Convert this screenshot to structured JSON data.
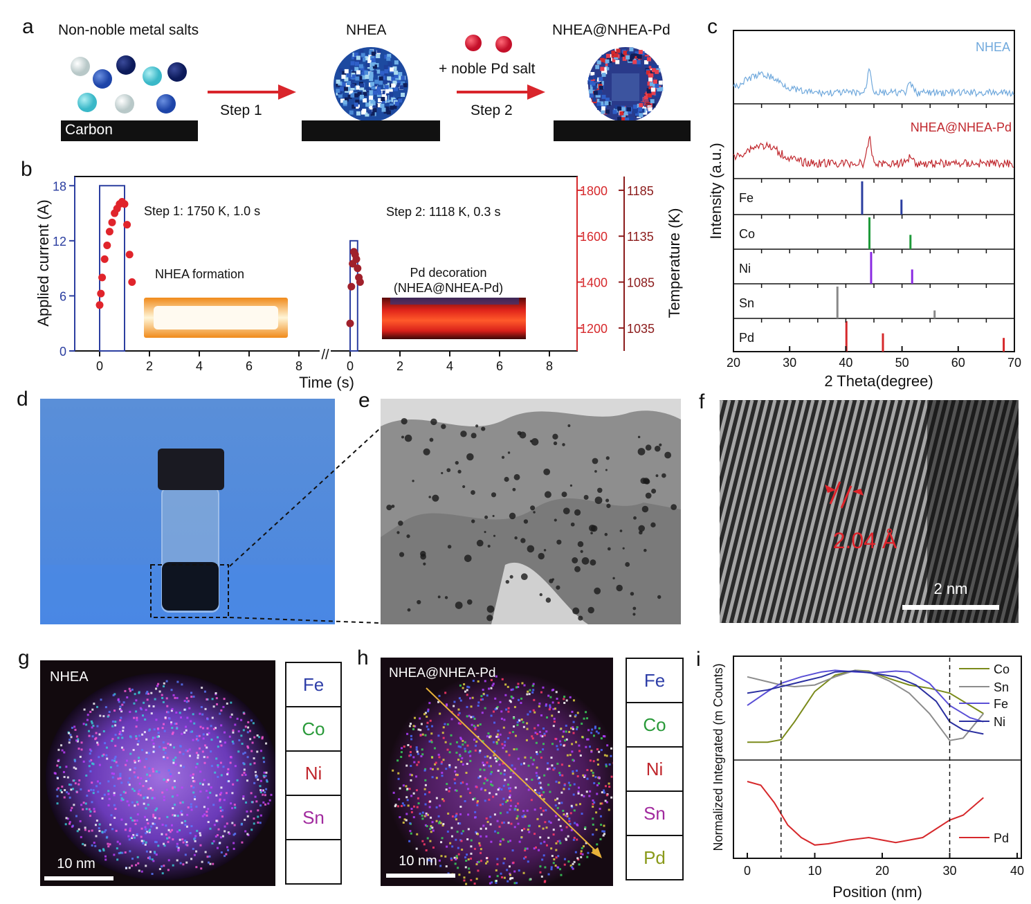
{
  "panels": {
    "a": "a",
    "b": "b",
    "c": "c",
    "d": "d",
    "e": "e",
    "f": "f",
    "g": "g",
    "h": "h",
    "i": "i"
  },
  "a": {
    "salts_label": "Non-noble metal salts",
    "carbon_label": "Carbon",
    "step1_label": "Step 1",
    "nhea_label": "NHEA",
    "pd_salt_label": "+ noble Pd salt",
    "step2_label": "Step 2",
    "product_label": "NHEA@NHEA-Pd"
  },
  "b": {
    "ylabel_left": "Applied current (A)",
    "ylabel_right": "Temperature (K)",
    "xlabel": "Time (s)",
    "left_ticks": [
      "0",
      "6",
      "12",
      "18"
    ],
    "x_ticks": [
      "0",
      "2",
      "4",
      "6",
      "8"
    ],
    "right_ticks_inner": [
      "1200",
      "1400",
      "1600",
      "1800"
    ],
    "right_ticks_outer": [
      "1035",
      "1085",
      "1135",
      "1185"
    ],
    "step1_text": "Step 1: 1750 K, 1.0 s",
    "step2_text": "Step 2: 1118 K, 0.3 s",
    "nhea_formation": "NHEA formation",
    "pd_decoration_1": "Pd decoration",
    "pd_decoration_2": "(NHEA@NHEA-Pd)",
    "break_mark": "//"
  },
  "c": {
    "ylabel": "Intensity (a.u.)",
    "xlabel": "2 Theta(degree)",
    "x_ticks": [
      "20",
      "30",
      "40",
      "50",
      "60",
      "70"
    ],
    "nhea_label": "NHEA",
    "nhea_pd_label": "NHEA@NHEA-Pd",
    "refs": [
      "Fe",
      "Co",
      "Ni",
      "Sn",
      "Pd"
    ],
    "colors": {
      "nhea": "#6fa8dc",
      "nhea_pd": "#c0272d",
      "Fe": "#2b3ea0",
      "Co": "#1f9a3a",
      "Ni": "#8a2be2",
      "Sn": "#888888",
      "Pd": "#d6282b"
    }
  },
  "f": {
    "spacing_label": "2.04 Å",
    "scale": "2 nm"
  },
  "g": {
    "title": "NHEA",
    "scale": "10 nm",
    "elements": [
      "Fe",
      "Co",
      "Ni",
      "Sn",
      ""
    ]
  },
  "h": {
    "title": "NHEA@NHEA-Pd",
    "scale": "10 nm",
    "elements": [
      "Fe",
      "Co",
      "Ni",
      "Sn",
      "Pd"
    ]
  },
  "element_colors": {
    "Fe": "#2f3fa8",
    "Co": "#2a9a3a",
    "Ni": "#c0272d",
    "Sn": "#a12a9e",
    "Pd": "#8a9a1a"
  },
  "i": {
    "ylabel": "Normalized Integrated (m Counts)",
    "xlabel": "Position (nm)",
    "x_ticks": [
      "0",
      "10",
      "20",
      "30",
      "40"
    ],
    "legend": [
      "Co",
      "Sn",
      "Fe",
      "Ni",
      "Pd"
    ],
    "colors": {
      "Co": "#7a8a1a",
      "Sn": "#8c8c8c",
      "Fe": "#5a4fd6",
      "Ni": "#2a2fa0",
      "Pd": "#d6282b"
    }
  },
  "chart_data": [
    {
      "type": "scatter",
      "title": "",
      "xlabel": "Time (s)",
      "ylabel": "Applied current (A)",
      "y2label": "Temperature (K)",
      "ylim": [
        0,
        19
      ],
      "series": [
        {
          "name": "Step 1",
          "x": [
            0,
            0.05,
            0.1,
            0.2,
            0.3,
            0.4,
            0.5,
            0.6,
            0.7,
            0.8,
            0.9,
            1.0,
            1.1,
            1.2,
            1.3
          ],
          "y": [
            1300,
            1350,
            1420,
            1500,
            1560,
            1620,
            1660,
            1700,
            1720,
            1740,
            1750,
            1740,
            1650,
            1520,
            1400
          ]
        },
        {
          "name": "Step 2",
          "x": [
            0,
            0.05,
            0.1,
            0.15,
            0.2,
            0.25,
            0.3,
            0.35,
            0.4
          ],
          "y": [
            1040,
            1080,
            1105,
            1118,
            1115,
            1110,
            1100,
            1090,
            1085
          ]
        }
      ],
      "current_pulses": [
        {
          "start": 0,
          "end": 1.0,
          "amps": 18
        },
        {
          "start": 0,
          "end": 0.3,
          "amps": 12
        }
      ]
    },
    {
      "type": "bar",
      "xlabel": "2 Theta(degree)",
      "ylabel": "Intensity (a.u.)",
      "xlim": [
        20,
        70
      ],
      "reference_peaks": {
        "Fe": [
          {
            "x": 42.9,
            "h": 1.0
          },
          {
            "x": 49.9,
            "h": 0.45
          }
        ],
        "Co": [
          {
            "x": 44.2,
            "h": 1.0
          },
          {
            "x": 51.5,
            "h": 0.45
          }
        ],
        "Ni": [
          {
            "x": 44.5,
            "h": 1.0
          },
          {
            "x": 51.8,
            "h": 0.45
          }
        ],
        "Sn": [
          {
            "x": 38.5,
            "h": 1.0
          },
          {
            "x": 55.8,
            "h": 0.25
          }
        ],
        "Pd": [
          {
            "x": 40.1,
            "h": 1.0
          },
          {
            "x": 46.6,
            "h": 0.6
          },
          {
            "x": 68.1,
            "h": 0.45
          }
        ]
      },
      "pattern_peaks": [
        25,
        44.2,
        51.5
      ]
    },
    {
      "type": "line",
      "xlabel": "Position (nm)",
      "ylabel": "Normalized Integrated (m Counts)",
      "xlim": [
        0,
        40
      ],
      "markers_x": [
        5,
        30
      ],
      "series": [
        {
          "name": "Co",
          "x": [
            0,
            3,
            5,
            7,
            10,
            13,
            16,
            18,
            21,
            24,
            27,
            30,
            33,
            35
          ],
          "y": [
            0.1,
            0.1,
            0.13,
            0.35,
            0.72,
            0.92,
            0.98,
            0.97,
            0.88,
            0.8,
            0.76,
            0.7,
            0.55,
            0.45
          ]
        },
        {
          "name": "Sn",
          "x": [
            0,
            3,
            5,
            7,
            10,
            13,
            16,
            18,
            21,
            24,
            27,
            30,
            32,
            34,
            35
          ],
          "y": [
            0.9,
            0.84,
            0.8,
            0.78,
            0.8,
            0.9,
            0.98,
            0.96,
            0.85,
            0.7,
            0.45,
            0.12,
            0.15,
            0.35,
            0.45
          ]
        },
        {
          "name": "Fe",
          "x": [
            0,
            3,
            5,
            8,
            11,
            13,
            16,
            19,
            22,
            24,
            27,
            30,
            33,
            35
          ],
          "y": [
            0.55,
            0.72,
            0.82,
            0.9,
            0.96,
            0.98,
            0.96,
            0.95,
            0.97,
            0.96,
            0.82,
            0.55,
            0.4,
            0.35
          ]
        },
        {
          "name": "Ni",
          "x": [
            0,
            3,
            5,
            8,
            11,
            13,
            16,
            19,
            22,
            25,
            28,
            30,
            32,
            35
          ],
          "y": [
            0.7,
            0.74,
            0.78,
            0.84,
            0.9,
            0.96,
            0.97,
            0.94,
            0.9,
            0.8,
            0.6,
            0.35,
            0.25,
            0.2
          ]
        },
        {
          "name": "Pd",
          "x": [
            0,
            2,
            4,
            6,
            8,
            10,
            12,
            15,
            18,
            22,
            26,
            28,
            30,
            32,
            35
          ],
          "y": [
            0.55,
            0.52,
            0.38,
            0.2,
            0.1,
            0.04,
            0.05,
            0.08,
            0.1,
            0.06,
            0.1,
            0.17,
            0.24,
            0.28,
            0.42
          ]
        }
      ]
    }
  ]
}
